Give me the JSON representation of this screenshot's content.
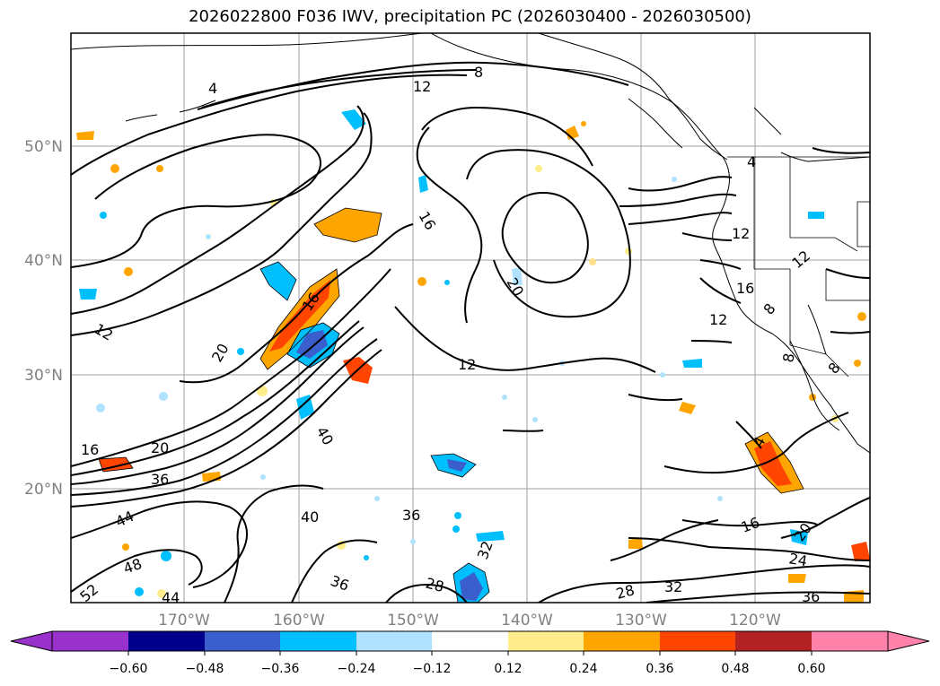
{
  "title": "2026022800 F036 IWV, precipitation PC (2026030400 - 2026030500)",
  "map": {
    "lat_labels": [
      "50°N",
      "40°N",
      "30°N",
      "20°N"
    ],
    "lon_labels": [
      "170°W",
      "160°W",
      "150°W",
      "140°W",
      "130°W",
      "120°W"
    ],
    "contour_labels": [
      "4",
      "8",
      "12",
      "4",
      "16",
      "20",
      "16",
      "12",
      "20",
      "16",
      "20",
      "36",
      "40",
      "44",
      "48",
      "52",
      "44",
      "40",
      "36",
      "36",
      "28",
      "32",
      "28",
      "32",
      "12",
      "16",
      "12",
      "12",
      "16",
      "8",
      "8",
      "8",
      "24",
      "20",
      "36",
      "12",
      "4"
    ]
  },
  "colorbar": {
    "ticks": [
      "−0.60",
      "−0.48",
      "−0.36",
      "−0.24",
      "−0.12",
      "0.12",
      "0.24",
      "0.36",
      "0.48",
      "0.60"
    ],
    "colors": [
      "#9932cc",
      "#00008b",
      "#3a5fcd",
      "#00bfff",
      "#b0e2ff",
      "#ffffff",
      "#ffec8b",
      "#ffa500",
      "#ff4500",
      "#b22222",
      "#ff82ab"
    ]
  }
}
